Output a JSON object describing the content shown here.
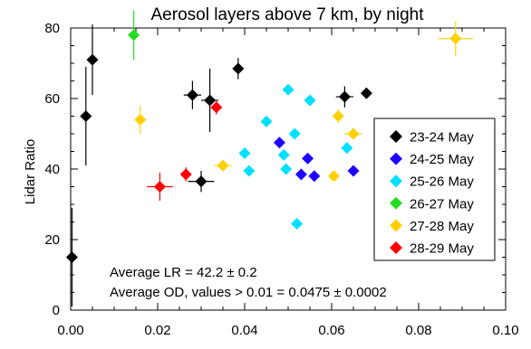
{
  "chart_data": {
    "type": "scatter",
    "title": "Aerosol layers above 7 km, by night",
    "xlabel": "",
    "ylabel": "Lidar Ratio",
    "xlim": [
      0.0,
      0.1
    ],
    "ylim": [
      0,
      80
    ],
    "xticks": [
      "0.00",
      "0.02",
      "0.04",
      "0.06",
      "0.08",
      "0.10"
    ],
    "yticks": [
      "0",
      "20",
      "40",
      "60",
      "80"
    ],
    "grid": false,
    "legend_position": "right",
    "annotations": [
      "Average LR =   42.2 ± 0.2",
      "Average OD, values > 0.01 = 0.0475  ± 0.0002"
    ],
    "series": [
      {
        "name": "23-24 May",
        "color": "#000000",
        "points": [
          {
            "x": 0.0003,
            "y": 15,
            "yerr": 14
          },
          {
            "x": 0.0035,
            "y": 55,
            "yerr": 14
          },
          {
            "x": 0.005,
            "y": 71,
            "yerr": 10,
            "xerr": 0.001
          },
          {
            "x": 0.028,
            "y": 61,
            "yerr": 4,
            "xerr": 0.002
          },
          {
            "x": 0.03,
            "y": 36.5,
            "yerr": 3,
            "xerr": 0.003
          },
          {
            "x": 0.032,
            "y": 59.5,
            "yerr": 9,
            "xerr": 0.002
          },
          {
            "x": 0.0385,
            "y": 68.5,
            "yerr": 3
          },
          {
            "x": 0.063,
            "y": 60.5,
            "yerr": 3,
            "xerr": 0.002
          },
          {
            "x": 0.068,
            "y": 61.5,
            "yerr": 1
          }
        ]
      },
      {
        "name": "24-25 May",
        "color": "#1f00ff",
        "points": [
          {
            "x": 0.048,
            "y": 47.5
          },
          {
            "x": 0.053,
            "y": 38.5
          },
          {
            "x": 0.0545,
            "y": 43
          },
          {
            "x": 0.056,
            "y": 38
          },
          {
            "x": 0.065,
            "y": 39.5
          }
        ]
      },
      {
        "name": "25-26 May",
        "color": "#00e0ff",
        "points": [
          {
            "x": 0.04,
            "y": 44.5
          },
          {
            "x": 0.041,
            "y": 39.5
          },
          {
            "x": 0.045,
            "y": 53.5
          },
          {
            "x": 0.049,
            "y": 44
          },
          {
            "x": 0.0495,
            "y": 40,
            "xerr": 0.001
          },
          {
            "x": 0.05,
            "y": 62.5,
            "xerr": 0.001
          },
          {
            "x": 0.0515,
            "y": 50,
            "xerr": 0.001
          },
          {
            "x": 0.052,
            "y": 24.5,
            "xerr": 0.001
          },
          {
            "x": 0.055,
            "y": 59.5,
            "xerr": 0.001
          },
          {
            "x": 0.0635,
            "y": 46
          }
        ]
      },
      {
        "name": "26-27 May",
        "color": "#22dd22",
        "points": [
          {
            "x": 0.0145,
            "y": 78,
            "yerr": 7
          }
        ]
      },
      {
        "name": "27-28 May",
        "color": "#ffd000",
        "points": [
          {
            "x": 0.016,
            "y": 54,
            "yerr": 4
          },
          {
            "x": 0.035,
            "y": 41,
            "xerr": 0.002
          },
          {
            "x": 0.0605,
            "y": 38
          },
          {
            "x": 0.0615,
            "y": 55,
            "yerr": 2
          },
          {
            "x": 0.065,
            "y": 50,
            "xerr": 0.002
          },
          {
            "x": 0.0885,
            "y": 77,
            "xerr": 0.004,
            "yerr": 5
          }
        ]
      },
      {
        "name": "28-29 May",
        "color": "#ff0000",
        "points": [
          {
            "x": 0.0205,
            "y": 35,
            "xerr": 0.003,
            "yerr": 4
          },
          {
            "x": 0.0265,
            "y": 38.5,
            "yerr": 2
          },
          {
            "x": 0.0335,
            "y": 57.5,
            "yerr": 2
          }
        ]
      }
    ]
  }
}
